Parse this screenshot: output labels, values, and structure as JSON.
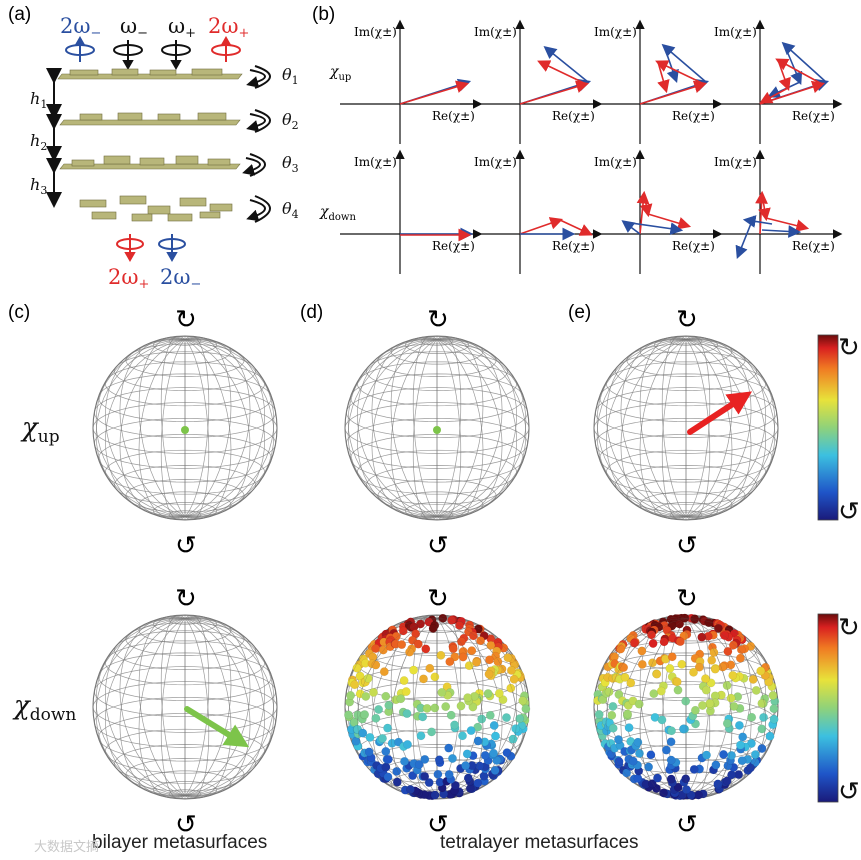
{
  "panels": {
    "a": "(a)",
    "b": "(b)",
    "c": "(c)",
    "d": "(d)",
    "e": "(e)"
  },
  "panel_a": {
    "top_freqs": [
      {
        "text": "2ω",
        "sub": "−",
        "color": "#2a4fa0"
      },
      {
        "text": "ω",
        "sub": "−",
        "color": "#111111"
      },
      {
        "text": "ω",
        "sub": "+",
        "color": "#111111"
      },
      {
        "text": "2ω",
        "sub": "+",
        "color": "#e02b2b"
      }
    ],
    "bottom_freqs": [
      {
        "text": "2ω",
        "sub": "+",
        "color": "#e02b2b"
      },
      {
        "text": "2ω",
        "sub": "−",
        "color": "#2a4fa0"
      }
    ],
    "heights": [
      {
        "text": "h",
        "sub": "1"
      },
      {
        "text": "h",
        "sub": "2"
      },
      {
        "text": "h",
        "sub": "3"
      }
    ],
    "angles": [
      {
        "text": "θ",
        "sub": "1"
      },
      {
        "text": "θ",
        "sub": "2"
      },
      {
        "text": "θ",
        "sub": "3"
      },
      {
        "text": "θ",
        "sub": "4"
      }
    ]
  },
  "panel_b": {
    "im_label": "Im(χ",
    "re_label": "Re(χ",
    "pm": "±",
    "close": ")",
    "row_up": {
      "text": "χ",
      "sub": "up"
    },
    "row_down": {
      "text": "χ",
      "sub": "down"
    }
  },
  "panel_cde": {
    "row_up": {
      "text": "χ",
      "sub": "up"
    },
    "row_down": {
      "text": "χ",
      "sub": "down"
    },
    "pole_top": "↻",
    "pole_bottom": "↺",
    "colorbar_top": "↻",
    "colorbar_bottom": "↺"
  },
  "captions": {
    "bilayer": "bilayer metasurfaces",
    "tetralayer": "tetralayer metasurfaces"
  },
  "watermark": "大数据文摘",
  "colors": {
    "blue": "#2a4fa0",
    "red": "#e02b2b",
    "green": "#7dc44a",
    "layer": "#b8b67a",
    "grid": "#7a7a7a"
  }
}
